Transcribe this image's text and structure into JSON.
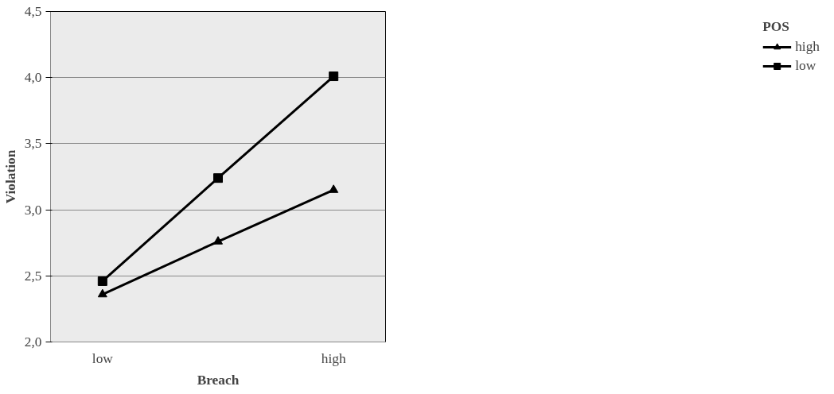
{
  "chart_data": {
    "type": "line",
    "xlabel": "Breach",
    "ylabel": "Violation",
    "legend_title": "POS",
    "categories": [
      "low",
      null,
      "high"
    ],
    "series": [
      {
        "name": "high",
        "color": "#000000",
        "marker": "triangle",
        "values": [
          2.36,
          2.76,
          3.15
        ]
      },
      {
        "name": "low",
        "color": "#000000",
        "marker": "square",
        "values": [
          2.46,
          3.24,
          4.01
        ]
      }
    ],
    "ylim": [
      2.0,
      4.5
    ],
    "yticks": [
      {
        "value": 2.0,
        "label": "2,0"
      },
      {
        "value": 2.5,
        "label": "2,5"
      },
      {
        "value": 3.0,
        "label": "3,0"
      },
      {
        "value": 3.5,
        "label": "3,5"
      },
      {
        "value": 4.0,
        "label": "4,0"
      },
      {
        "value": 4.5,
        "label": "4,5"
      }
    ],
    "grid": "y",
    "legend": "right",
    "line_style": "solid"
  }
}
